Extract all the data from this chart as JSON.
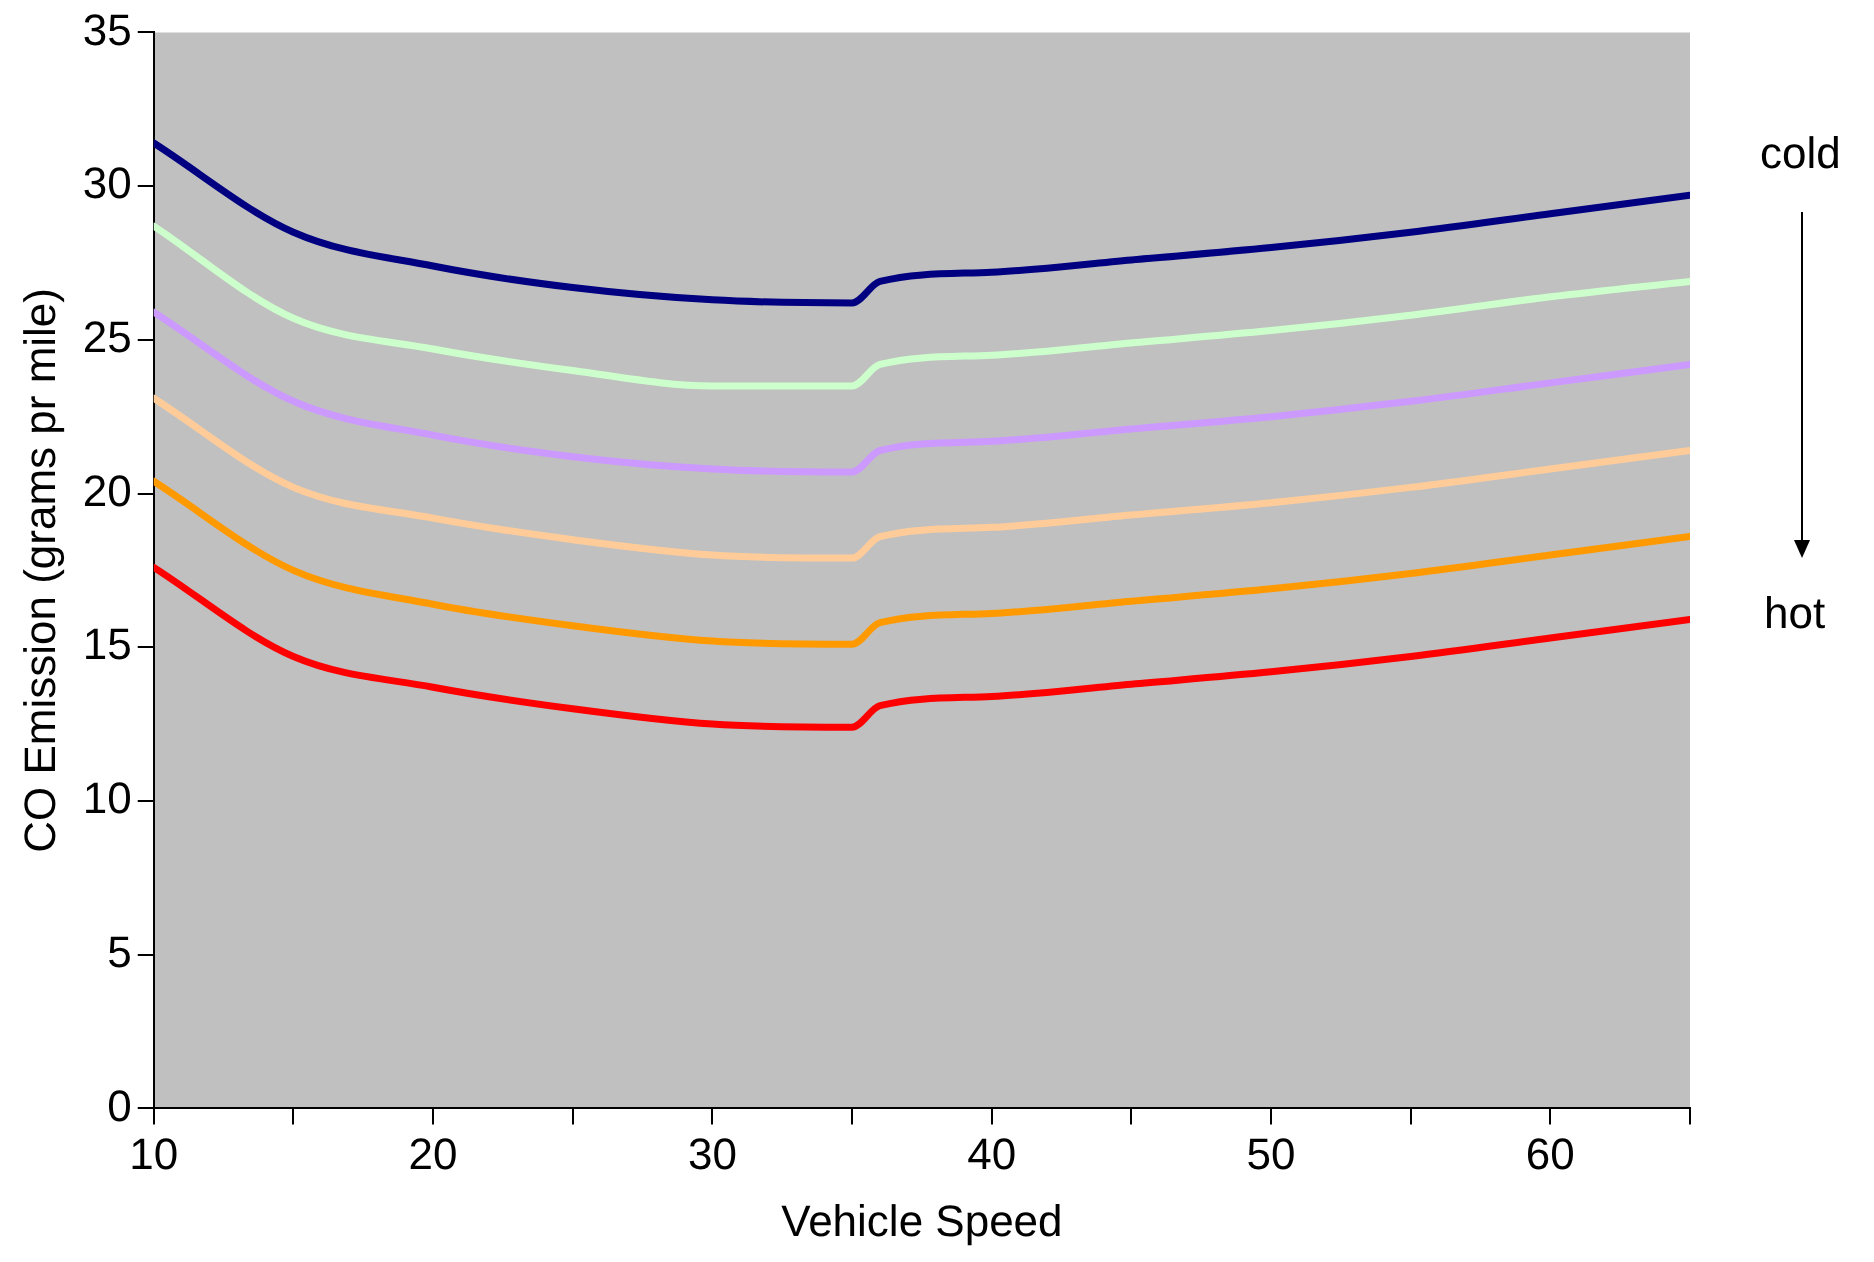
{
  "chart_data": {
    "type": "line",
    "xlabel": "Vehicle Speed",
    "ylabel": "CO Emission (grams pr mile)",
    "x": [
      10,
      15,
      20,
      25,
      30,
      35,
      36,
      40,
      45,
      50,
      55,
      60,
      65
    ],
    "series": [
      {
        "color": "#000080",
        "values": [
          31.4,
          28.5,
          27.4,
          26.7,
          26.3,
          26.2,
          26.9,
          27.2,
          27.6,
          28.0,
          28.5,
          29.1,
          29.7
        ]
      },
      {
        "color": "#ccffcc",
        "values": [
          28.7,
          25.7,
          24.7,
          24.0,
          23.5,
          23.5,
          24.2,
          24.5,
          24.9,
          25.3,
          25.8,
          26.4,
          26.9
        ]
      },
      {
        "color": "#cc99ff",
        "values": [
          25.9,
          23.0,
          21.9,
          21.2,
          20.8,
          20.7,
          21.4,
          21.7,
          22.1,
          22.5,
          23.0,
          23.6,
          24.2
        ]
      },
      {
        "color": "#ffcc99",
        "values": [
          23.1,
          20.2,
          19.2,
          18.5,
          18.0,
          17.9,
          18.6,
          18.9,
          19.3,
          19.7,
          20.2,
          20.8,
          21.4
        ]
      },
      {
        "color": "#ff9900",
        "values": [
          20.4,
          17.5,
          16.4,
          15.7,
          15.2,
          15.1,
          15.8,
          16.1,
          16.5,
          16.9,
          17.4,
          18.0,
          18.6
        ]
      },
      {
        "color": "#ff0000",
        "values": [
          17.6,
          14.7,
          13.7,
          13.0,
          12.5,
          12.4,
          13.1,
          13.4,
          13.8,
          14.2,
          14.7,
          15.3,
          15.9
        ]
      }
    ],
    "xlim": [
      10,
      65
    ],
    "xticks": [
      10,
      {
        "value": 15,
        "label": null
      },
      20,
      {
        "value": 25,
        "label": null
      },
      30,
      {
        "value": 35,
        "label": null
      },
      40,
      {
        "value": 45,
        "label": null
      },
      50,
      {
        "value": 55,
        "label": null
      },
      60,
      {
        "value": 65,
        "label": null
      }
    ],
    "ylim": [
      0,
      35
    ],
    "yticks": [
      0,
      5,
      10,
      15,
      20,
      25,
      30,
      35
    ],
    "grid": false,
    "legend": false,
    "marker": "none",
    "line_style": "solid",
    "annotations": [
      "cold",
      "hot"
    ]
  }
}
